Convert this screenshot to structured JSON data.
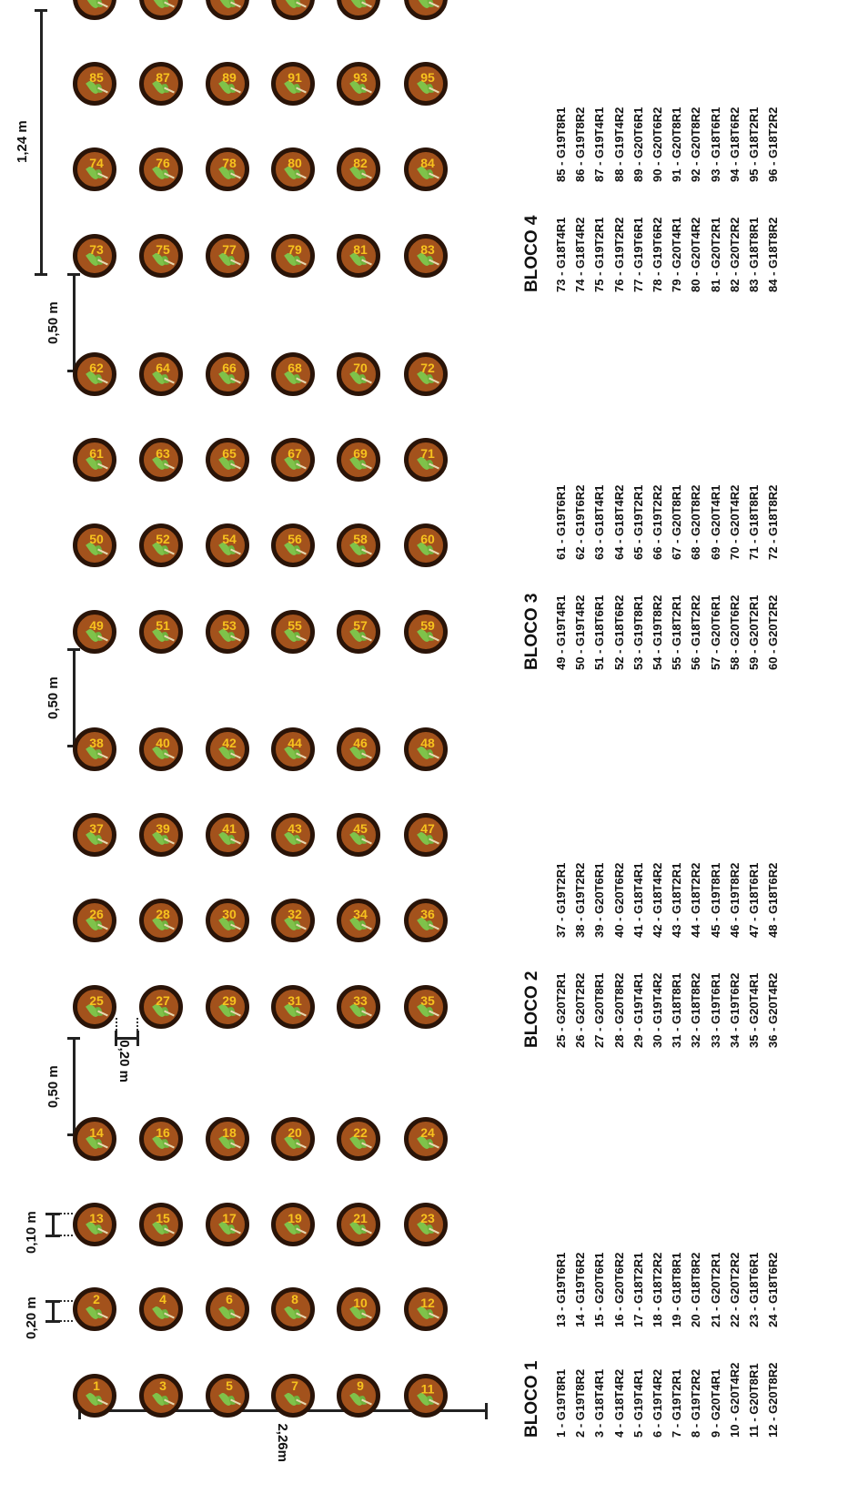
{
  "dimensions": {
    "width_label": "2,26m",
    "length_label": "1,24 m",
    "gap_label": "0,50 m",
    "pot_gap_label": "0,20 m",
    "pair_gap_label": "0,10 m",
    "row_gap_label": "0,20 m"
  },
  "colors": {
    "pot_fill": "#a3521c",
    "pot_rim": "#2a1408",
    "leaf": "#7fc24a",
    "number": "#f7c21e"
  },
  "blocks": [
    {
      "title": "BLOCO 1",
      "col1": [
        "1 - G19T8R1",
        "2 - G19T8R2",
        "3 - G18T4R1",
        "4 - G18T4R2",
        "5 - G19T4R1",
        "6 - G19T4R2",
        "7 - G19T2R1",
        "8 - G19T2R2",
        "9 - G20T4R1",
        "10 - G20T4R2",
        "11 - G20T8R1",
        "12 - G20T8R2"
      ],
      "col2": [
        "13 - G19T6R1",
        "14 - G19T6R2",
        "15 - G20T6R1",
        "16 - G20T6R2",
        "17 - G18T2R1",
        "18 - G18T2R2",
        "19 - G18T8R1",
        "20 - G18T8R2",
        "21 - G20T2R1",
        "22 - G20T2R2",
        "23 - G18T6R1",
        "24 - G18T6R2"
      ]
    },
    {
      "title": "BLOCO 2",
      "col1": [
        "25 - G20T2R1",
        "26 - G20T2R2",
        "27 - G20T8R1",
        "28 - G20T8R2",
        "29 - G19T4R1",
        "30 - G19T4R2",
        "31 - G18T8R1",
        "32 - G18T8R2",
        "33 - G19T6R1",
        "34 - G19T6R2",
        "35 - G20T4R1",
        "36 - G20T4R2"
      ],
      "col2": [
        "37 - G19T2R1",
        "38 - G19T2R2",
        "39 - G20T6R1",
        "40 - G20T6R2",
        "41 - G18T4R1",
        "42 - G18T4R2",
        "43 - G18T2R1",
        "44 - G18T2R2",
        "45 - G19T8R1",
        "46 - G19T8R2",
        "47 - G18T6R1",
        "48 - G18T6R2"
      ]
    },
    {
      "title": "BLOCO 3",
      "col1": [
        "49 - G19T4R1",
        "50 - G19T4R2",
        "51 - G18T6R1",
        "52 - G18T6R2",
        "53 - G19T8R1",
        "54 - G19T8R2",
        "55 - G18T2R1",
        "56 - G18T2R2",
        "57 - G20T6R1",
        "58 - G20T6R2",
        "59 - G20T2R1",
        "60 - G20T2R2"
      ],
      "col2": [
        "61 - G19T6R1",
        "62 - G19T6R2",
        "63 - G18T4R1",
        "64 - G18T4R2",
        "65 - G19T2R1",
        "66 - G19T2R2",
        "67 - G20T8R1",
        "68 - G20T8R2",
        "69 - G20T4R1",
        "70 - G20T4R2",
        "71 - G18T8R1",
        "72 - G18T8R2"
      ]
    },
    {
      "title": "BLOCO 4",
      "col1": [
        "73 - G18T4R1",
        "74 - G18T4R2",
        "75 - G19T2R1",
        "76 - G19T2R2",
        "77 - G19T6R1",
        "78 - G19T6R2",
        "79 - G20T4R1",
        "80 - G20T4R2",
        "81 - G20T2R1",
        "82 - G20T2R2",
        "83 - G18T8R1",
        "84 - G18T8R2"
      ],
      "col2": [
        "85 - G19T8R1",
        "86 - G19T8R2",
        "87 - G19T4R1",
        "88 - G19T4R2",
        "89 - G20T6R1",
        "90 - G20T6R2",
        "91 - G20T8R1",
        "92 - G20T8R2",
        "93 - G18T6R1",
        "94 - G18T6R2",
        "95 - G18T2R1",
        "96 - G18T2R2"
      ]
    }
  ]
}
